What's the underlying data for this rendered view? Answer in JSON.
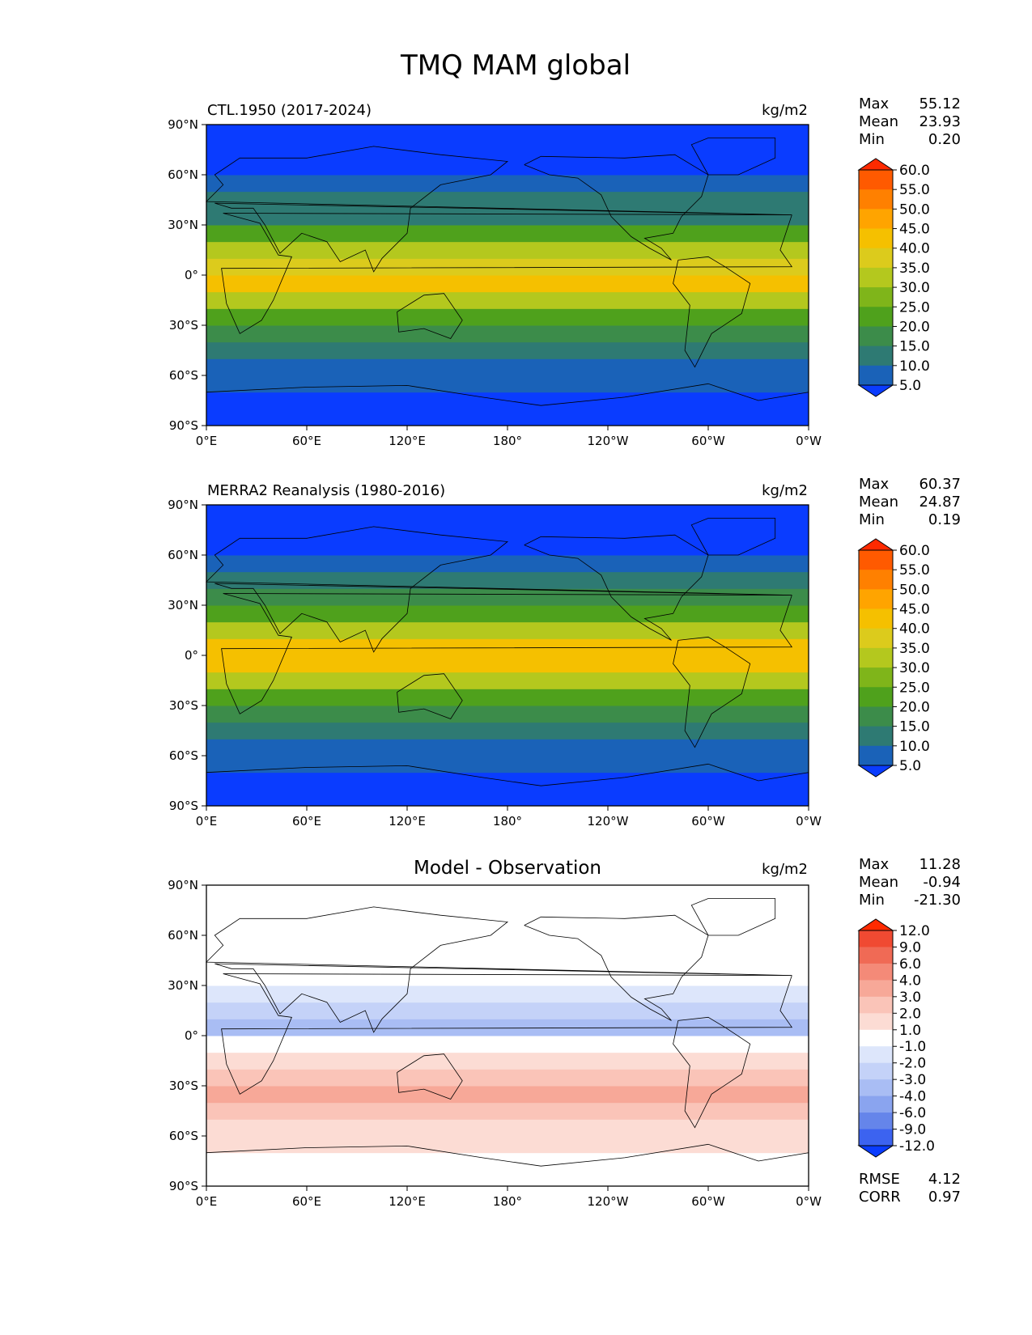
{
  "figure_title": "TMQ MAM global",
  "chart_data": [
    {
      "type": "heatmap",
      "title_left": "CTL.1950 (2017-2024)",
      "title_center": "",
      "units": "kg/m2",
      "stats": [
        {
          "label": "Max",
          "value": "55.12"
        },
        {
          "label": "Mean",
          "value": "23.93"
        },
        {
          "label": "Min",
          "value": "0.20"
        }
      ],
      "x_ticks": [
        "0°E",
        "60°E",
        "120°E",
        "180°",
        "120°W",
        "60°W",
        "0°W"
      ],
      "y_ticks": [
        "90°N",
        "60°N",
        "30°N",
        "0°",
        "30°S",
        "60°S",
        "90°S"
      ],
      "xlim": [
        0,
        360
      ],
      "ylim": [
        -90,
        90
      ],
      "colorbar": {
        "extend": "both",
        "labels": [
          "60.0",
          "55.0",
          "50.0",
          "45.0",
          "40.0",
          "35.0",
          "30.0",
          "25.0",
          "20.0",
          "15.0",
          "10.0",
          "5.0"
        ],
        "colors": [
          "#ff2a00",
          "#ff5a00",
          "#ff8000",
          "#ffa400",
          "#f5c000",
          "#dccb1c",
          "#b4c81e",
          "#7fb51a",
          "#4fa11c",
          "#3c8c4a",
          "#2e7a73",
          "#1a62b8",
          "#0a3cff"
        ]
      },
      "fields": {
        "zonal_lat": [
          -90,
          -80,
          -70,
          -60,
          -50,
          -40,
          -30,
          -20,
          -10,
          0,
          10,
          20,
          30,
          40,
          50,
          60,
          70,
          80,
          90
        ],
        "zonal_mean": [
          1,
          2,
          4,
          7,
          11,
          15,
          20,
          28,
          38,
          43,
          36,
          25,
          17,
          12,
          9,
          6,
          3,
          2,
          1
        ]
      }
    },
    {
      "type": "heatmap",
      "title_left": "MERRA2 Reanalysis (1980-2016)",
      "title_center": "",
      "units": "kg/m2",
      "stats": [
        {
          "label": "Max",
          "value": "60.37"
        },
        {
          "label": "Mean",
          "value": "24.87"
        },
        {
          "label": "Min",
          "value": "0.19"
        }
      ],
      "x_ticks": [
        "0°E",
        "60°E",
        "120°E",
        "180°",
        "120°W",
        "60°W",
        "0°W"
      ],
      "y_ticks": [
        "90°N",
        "60°N",
        "30°N",
        "0°",
        "30°S",
        "60°S",
        "90°S"
      ],
      "xlim": [
        0,
        360
      ],
      "ylim": [
        -90,
        90
      ],
      "colorbar": {
        "extend": "both",
        "labels": [
          "60.0",
          "55.0",
          "50.0",
          "45.0",
          "40.0",
          "35.0",
          "30.0",
          "25.0",
          "20.0",
          "15.0",
          "10.0",
          "5.0"
        ],
        "colors": [
          "#ff2a00",
          "#ff5a00",
          "#ff8000",
          "#ffa400",
          "#f5c000",
          "#dccb1c",
          "#b4c81e",
          "#7fb51a",
          "#4fa11c",
          "#3c8c4a",
          "#2e7a73",
          "#1a62b8",
          "#0a3cff"
        ]
      },
      "fields": {
        "zonal_lat": [
          -90,
          -80,
          -70,
          -60,
          -50,
          -40,
          -30,
          -20,
          -10,
          0,
          10,
          20,
          30,
          40,
          50,
          60,
          70,
          80,
          90
        ],
        "zonal_mean": [
          1,
          2,
          4,
          7,
          10,
          14,
          19,
          27,
          40,
          47,
          39,
          26,
          18,
          13,
          9,
          6,
          3,
          2,
          1
        ]
      }
    },
    {
      "type": "heatmap",
      "title_left": "",
      "title_center": "Model - Observation",
      "units": "kg/m2",
      "stats": [
        {
          "label": "Max",
          "value": "11.28"
        },
        {
          "label": "Mean",
          "value": "-0.94"
        },
        {
          "label": "Min",
          "value": "-21.30"
        }
      ],
      "bottom_stats": [
        {
          "label": "RMSE",
          "value": "4.12"
        },
        {
          "label": "CORR",
          "value": "0.97"
        }
      ],
      "x_ticks": [
        "0°E",
        "60°E",
        "120°E",
        "180°",
        "120°W",
        "60°W",
        "0°W"
      ],
      "y_ticks": [
        "90°N",
        "60°N",
        "30°N",
        "0°",
        "30°S",
        "60°S",
        "90°S"
      ],
      "xlim": [
        0,
        360
      ],
      "ylim": [
        -90,
        90
      ],
      "colorbar": {
        "extend": "both",
        "labels": [
          "12.0",
          "9.0",
          "6.0",
          "4.0",
          "3.0",
          "2.0",
          "1.0",
          "-1.0",
          "-2.0",
          "-3.0",
          "-4.0",
          "-6.0",
          "-9.0",
          "-12.0"
        ],
        "colors": [
          "#ff2a00",
          "#f04a32",
          "#f06a55",
          "#f48a78",
          "#f7a898",
          "#fac4b8",
          "#fcdcd4",
          "#ffffff",
          "#dde6fb",
          "#c4d2f8",
          "#a9bdf4",
          "#8aa4ef",
          "#6585ea",
          "#3c63f0",
          "#0a3cff"
        ]
      },
      "fields": {
        "zonal_lat": [
          -90,
          -80,
          -70,
          -60,
          -50,
          -40,
          -30,
          -20,
          -10,
          0,
          10,
          20,
          30,
          40,
          50,
          60,
          70,
          80,
          90
        ],
        "zonal_mean": [
          0,
          0,
          1,
          1,
          2,
          3,
          3,
          2,
          1,
          -3,
          -4,
          -2,
          -1,
          -1,
          -1,
          0,
          0,
          0,
          0
        ]
      }
    }
  ]
}
